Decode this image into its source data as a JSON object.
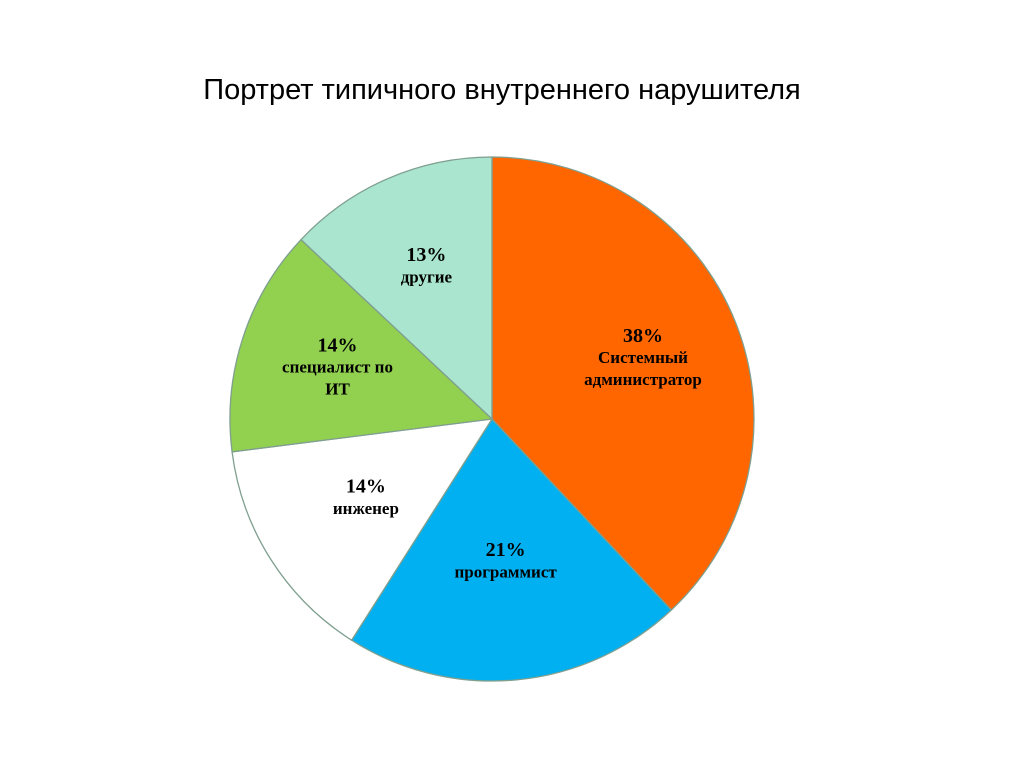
{
  "chart_data": {
    "type": "pie",
    "title": "Портрет типичного внутреннего нарушителя",
    "slices": [
      {
        "label": "Системный администратор",
        "label_lines": [
          "Системный",
          "администратор"
        ],
        "value": 38,
        "value_text": "38%",
        "color": "#FF6600"
      },
      {
        "label": "программист",
        "label_lines": [
          "программист"
        ],
        "value": 21,
        "value_text": "21%",
        "color": "#00B0F0"
      },
      {
        "label": "инженер",
        "label_lines": [
          "инженер"
        ],
        "value": 14,
        "value_text": "14%",
        "color": "#FFFFFF"
      },
      {
        "label": "специалист по ИТ",
        "label_lines": [
          "специалист по",
          "ИТ"
        ],
        "value": 14,
        "value_text": "14%",
        "color": "#92D050"
      },
      {
        "label": "другие",
        "label_lines": [
          "другие"
        ],
        "value": 13,
        "value_text": "13%",
        "color": "#A9E5CF"
      }
    ],
    "start_angle_deg": 0,
    "direction": "clockwise",
    "stroke_color": "#7F9F8F"
  }
}
